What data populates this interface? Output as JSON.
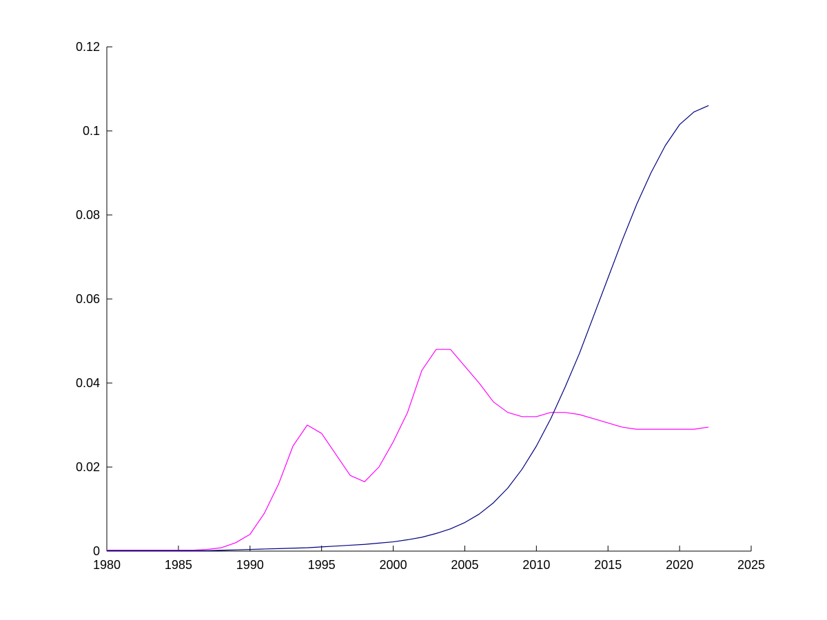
{
  "figure": {
    "background_color": "#ffffff"
  },
  "chart_data": {
    "type": "line",
    "title": "",
    "xlabel": "",
    "ylabel": "",
    "grid": false,
    "legend": "none",
    "axis_color": "#000000",
    "tick_label_color": "#000000",
    "xlim": [
      1980,
      2025
    ],
    "ylim": [
      0,
      0.12
    ],
    "xticks": [
      1980,
      1985,
      1990,
      1995,
      2000,
      2005,
      2010,
      2015,
      2020,
      2025
    ],
    "xtick_labels": [
      "1980",
      "1985",
      "1990",
      "1995",
      "2000",
      "2005",
      "2010",
      "2015",
      "2020",
      "2025"
    ],
    "yticks": [
      0,
      0.02,
      0.04,
      0.06,
      0.08,
      0.1,
      0.12
    ],
    "ytick_labels": [
      "0",
      "0.02",
      "0.04",
      "0.06",
      "0.08",
      "0.1",
      "0.12"
    ],
    "x": [
      1980,
      1981,
      1982,
      1983,
      1984,
      1985,
      1986,
      1987,
      1988,
      1989,
      1990,
      1991,
      1992,
      1993,
      1994,
      1995,
      1996,
      1997,
      1998,
      1999,
      2000,
      2001,
      2002,
      2003,
      2004,
      2005,
      2006,
      2007,
      2008,
      2009,
      2010,
      2011,
      2012,
      2013,
      2014,
      2015,
      2016,
      2017,
      2018,
      2019,
      2020,
      2021,
      2022
    ],
    "series": [
      {
        "name": "magenta-series",
        "color": "#ff00ff",
        "values": [
          0.0002,
          0.0002,
          0.0002,
          0.0002,
          0.0002,
          0.0002,
          0.0002,
          0.0004,
          0.0008,
          0.002,
          0.004,
          0.009,
          0.016,
          0.025,
          0.03,
          0.028,
          0.023,
          0.018,
          0.0165,
          0.02,
          0.026,
          0.033,
          0.043,
          0.048,
          0.048,
          0.044,
          0.04,
          0.0355,
          0.033,
          0.032,
          0.032,
          0.033,
          0.033,
          0.0325,
          0.0315,
          0.0305,
          0.0295,
          0.029,
          0.029,
          0.029,
          0.029,
          0.029,
          0.0295
        ]
      },
      {
        "name": "navy-series",
        "color": "#000080",
        "values": [
          0.0001,
          0.0001,
          0.0001,
          0.0001,
          0.0001,
          0.0001,
          0.0001,
          0.0001,
          0.0002,
          0.0003,
          0.0004,
          0.0005,
          0.0006,
          0.0007,
          0.0008,
          0.001,
          0.0012,
          0.0014,
          0.0016,
          0.0019,
          0.0022,
          0.0027,
          0.0033,
          0.0042,
          0.0053,
          0.0068,
          0.0088,
          0.0115,
          0.015,
          0.0195,
          0.025,
          0.0315,
          0.039,
          0.047,
          0.056,
          0.065,
          0.074,
          0.0825,
          0.09,
          0.0965,
          0.1015,
          0.1045,
          0.106
        ]
      }
    ]
  }
}
